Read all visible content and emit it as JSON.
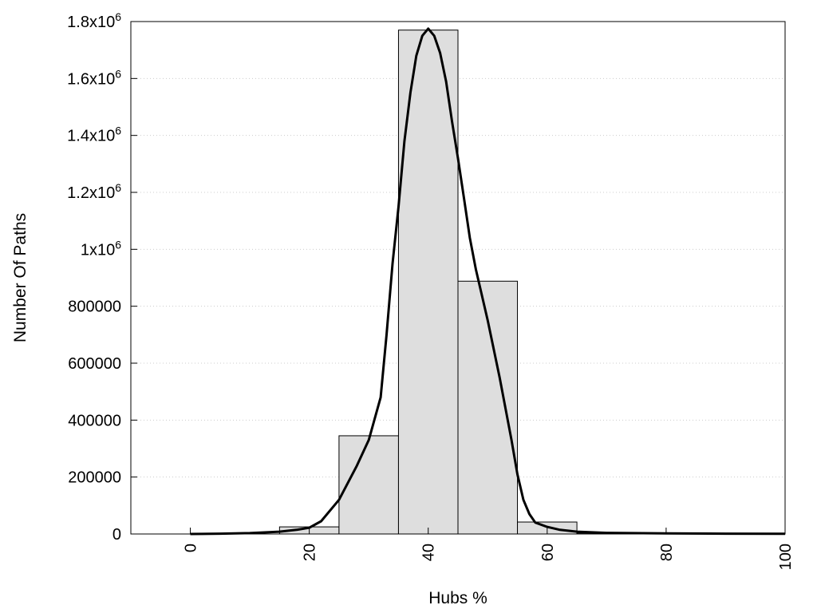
{
  "chart_data": {
    "type": "bar",
    "title": "",
    "xlabel": "Hubs %",
    "ylabel": "Number Of Paths",
    "xlim": [
      -10,
      100
    ],
    "ylim": [
      0,
      1800000
    ],
    "x_ticks": [
      0,
      20,
      40,
      60,
      80,
      100
    ],
    "x_tick_labels": [
      "0",
      "20",
      "40",
      "60",
      "80",
      "100"
    ],
    "y_ticks": [
      {
        "value": 0,
        "label": "0"
      },
      {
        "value": 200000,
        "label": "200000"
      },
      {
        "value": 400000,
        "label": "400000"
      },
      {
        "value": 600000,
        "label": "600000"
      },
      {
        "value": 800000,
        "label": "800000"
      },
      {
        "value": 1000000,
        "label": "1x10",
        "exp": "6"
      },
      {
        "value": 1200000,
        "label": "1.2x10",
        "exp": "6"
      },
      {
        "value": 1400000,
        "label": "1.4x10",
        "exp": "6"
      },
      {
        "value": 1600000,
        "label": "1.6x10",
        "exp": "6"
      },
      {
        "value": 1800000,
        "label": "1.8x10",
        "exp": "6"
      }
    ],
    "bin_width": 10,
    "bars": [
      {
        "x": 0,
        "value": 0
      },
      {
        "x": 10,
        "value": 0
      },
      {
        "x": 20,
        "value": 25000
      },
      {
        "x": 30,
        "value": 345000
      },
      {
        "x": 40,
        "value": 1770000
      },
      {
        "x": 50,
        "value": 888000
      },
      {
        "x": 60,
        "value": 42000
      },
      {
        "x": 70,
        "value": 3000
      },
      {
        "x": 80,
        "value": 0
      },
      {
        "x": 90,
        "value": 0
      }
    ],
    "curve": [
      [
        0,
        0
      ],
      [
        5,
        1000
      ],
      [
        10,
        3000
      ],
      [
        15,
        8000
      ],
      [
        18,
        15000
      ],
      [
        20,
        22000
      ],
      [
        22,
        45000
      ],
      [
        25,
        120000
      ],
      [
        28,
        240000
      ],
      [
        30,
        330000
      ],
      [
        32,
        480000
      ],
      [
        33,
        700000
      ],
      [
        34,
        950000
      ],
      [
        35,
        1150000
      ],
      [
        36,
        1380000
      ],
      [
        37,
        1550000
      ],
      [
        38,
        1680000
      ],
      [
        39,
        1750000
      ],
      [
        40,
        1775000
      ],
      [
        41,
        1750000
      ],
      [
        42,
        1690000
      ],
      [
        43,
        1590000
      ],
      [
        44,
        1450000
      ],
      [
        45,
        1320000
      ],
      [
        46,
        1180000
      ],
      [
        47,
        1040000
      ],
      [
        48,
        930000
      ],
      [
        50,
        750000
      ],
      [
        52,
        550000
      ],
      [
        54,
        330000
      ],
      [
        55,
        210000
      ],
      [
        56,
        120000
      ],
      [
        57,
        70000
      ],
      [
        58,
        40000
      ],
      [
        60,
        25000
      ],
      [
        62,
        15000
      ],
      [
        65,
        8000
      ],
      [
        70,
        4000
      ],
      [
        80,
        2000
      ],
      [
        90,
        1000
      ],
      [
        100,
        500
      ]
    ],
    "grid": true,
    "colors": {
      "bar_fill": "#dedede",
      "bar_stroke": "#000000",
      "curve": "#000000",
      "grid": "#cccccc"
    }
  }
}
